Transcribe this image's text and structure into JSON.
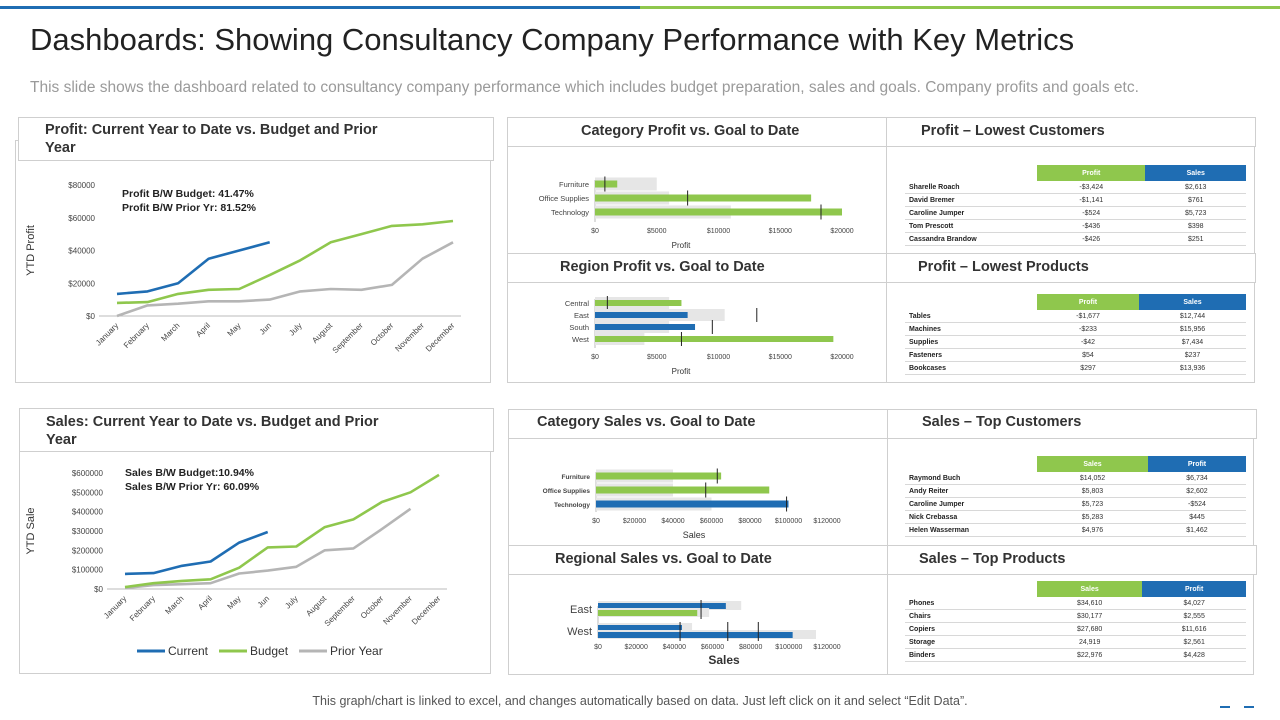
{
  "title": "Dashboards: Showing Consultancy Company Performance with Key Metrics",
  "subtitle": "This slide shows the dashboard related to consultancy company performance which includes budget preparation, sales and goals. Company profits and goals etc.",
  "footer": "This graph/chart is linked to excel, and changes automatically based on data. Just left click on it and select “Edit Data”.",
  "colors": {
    "current": "#1f6db3",
    "budget": "#8fc74d",
    "prior": "#b5b5b5",
    "goal_bg": "#e6e6e6"
  },
  "profit_panel": {
    "title_line1": "Profit: Current Year to Date vs. Budget and Prior",
    "title_line2": "Year",
    "note1": "Profit B/W Budget: 41.47%",
    "note2": "Profit B/W Prior Yr: 81.52%"
  },
  "sales_panel": {
    "title_line1": "Sales: Current Year to Date vs. Budget and Prior",
    "title_line2": "Year",
    "note1": "Sales B/W Budget:10.94%",
    "note2": "Sales B/W Prior Yr: 60.09%"
  },
  "legend": {
    "current": "Current",
    "budget": "Budget",
    "prior": "Prior Year"
  },
  "cells": {
    "cat_profit": "Category Profit vs. Goal to Date",
    "region_profit": "Region Profit vs. Goal to Date",
    "cat_sales": "Category Sales vs. Goal to Date",
    "regional_sales": "Regional Sales vs. Goal to Date",
    "low_customers": "Profit – Lowest Customers",
    "low_products": "Profit – Lowest Products",
    "top_customers": "Sales – Top Customers",
    "top_products": "Sales – Top Products"
  },
  "chart_data": [
    {
      "type": "line",
      "id": "profit_line",
      "ylabel": "YTD Profit",
      "ylim": [
        0,
        80000
      ],
      "yticks": [
        "$0",
        "$20000",
        "$40000",
        "$60000",
        "$80000"
      ],
      "ytick_values": [
        0,
        20000,
        40000,
        60000,
        80000
      ],
      "categories": [
        "January",
        "February",
        "March",
        "April",
        "May",
        "Jun",
        "July",
        "August",
        "September",
        "October",
        "November",
        "December"
      ],
      "series": [
        {
          "name": "Current",
          "values": [
            13500,
            15000,
            20000,
            35000,
            40000,
            45000,
            null,
            null,
            null,
            null,
            null,
            null
          ]
        },
        {
          "name": "Budget",
          "values": [
            8000,
            8500,
            13500,
            16000,
            16500,
            25000,
            34000,
            45000,
            50000,
            55000,
            56000,
            58000
          ]
        },
        {
          "name": "Prior Year",
          "values": [
            0,
            6500,
            7500,
            9000,
            9000,
            10000,
            15000,
            16500,
            16000,
            19000,
            35000,
            45000
          ]
        }
      ]
    },
    {
      "type": "line",
      "id": "sales_line",
      "ylabel": "YTD Sale",
      "ylim": [
        0,
        600000
      ],
      "yticks": [
        "$0",
        "$100000",
        "$200000",
        "$300000",
        "$400000",
        "$500000",
        "$600000"
      ],
      "ytick_values": [
        0,
        100000,
        200000,
        300000,
        400000,
        500000,
        600000
      ],
      "categories": [
        "January",
        "February",
        "March",
        "April",
        "May",
        "Jun",
        "July",
        "August",
        "September",
        "October",
        "November",
        "December"
      ],
      "series": [
        {
          "name": "Current",
          "values": [
            78000,
            82000,
            120000,
            142000,
            240000,
            295000,
            null,
            null,
            null,
            null,
            null,
            null
          ]
        },
        {
          "name": "Budget",
          "values": [
            10000,
            30000,
            42000,
            50000,
            110000,
            215000,
            220000,
            320000,
            360000,
            450000,
            500000,
            590000
          ]
        },
        {
          "name": "Prior Year",
          "values": [
            5000,
            20000,
            25000,
            30000,
            80000,
            95000,
            115000,
            200000,
            210000,
            310000,
            415000,
            null
          ]
        }
      ]
    },
    {
      "type": "bar",
      "id": "cat_profit",
      "orientation": "horizontal",
      "xlabel": "Profit",
      "categories": [
        "Furniture",
        "Office Supplies",
        "Technology"
      ],
      "values": [
        1800,
        17500,
        20000
      ],
      "goals": [
        800,
        7500,
        18300
      ],
      "background": [
        5000,
        6000,
        11000
      ],
      "bar_color": "#8fc74d",
      "xlim": [
        0,
        20000
      ],
      "xticks": [
        "$0",
        "$5000",
        "$10000",
        "$15000",
        "$20000"
      ],
      "xtick_values": [
        0,
        5000,
        10000,
        15000,
        20000
      ]
    },
    {
      "type": "bar",
      "id": "region_profit",
      "orientation": "horizontal",
      "xlabel": "Profit",
      "categories": [
        "Central",
        "East",
        "South",
        "West"
      ],
      "values": [
        7000,
        7500,
        8100,
        19300
      ],
      "colors": [
        "#8fc74d",
        "#1f6db3",
        "#1f6db3",
        "#8fc74d"
      ],
      "goals": [
        1000,
        13100,
        9500,
        7000
      ],
      "background": [
        6000,
        10500,
        6000,
        4000
      ],
      "xlim": [
        0,
        20000
      ],
      "xticks": [
        "$0",
        "$5000",
        "$10000",
        "$15000",
        "$20000"
      ],
      "xtick_values": [
        0,
        5000,
        10000,
        15000,
        20000
      ]
    },
    {
      "type": "bar",
      "id": "cat_sales",
      "orientation": "horizontal",
      "xlabel": "Sales",
      "categories": [
        "Furniture",
        "Office Supplies",
        "Technology"
      ],
      "values": [
        65000,
        90000,
        100000
      ],
      "colors": [
        "#8fc74d",
        "#8fc74d",
        "#1f6db3"
      ],
      "goals": [
        63000,
        57000,
        99000
      ],
      "background": [
        40000,
        40000,
        60000
      ],
      "xlim": [
        0,
        120000
      ],
      "xticks": [
        "$0",
        "$20000",
        "$40000",
        "$60000",
        "$80000",
        "$100000",
        "$120000"
      ],
      "xtick_values": [
        0,
        20000,
        40000,
        60000,
        80000,
        100000,
        120000
      ]
    },
    {
      "type": "bar",
      "id": "regional_sales",
      "orientation": "horizontal",
      "xlabel": "Sales",
      "categories": [
        "East",
        "West"
      ],
      "sub_values": [
        [
          67000,
          52000
        ],
        [
          44000,
          102000
        ]
      ],
      "sub_colors": [
        [
          "#1f6db3",
          "#8fc74d"
        ],
        [
          "#1f6db3",
          "#1f6db3"
        ]
      ],
      "goals": [
        [
          54000
        ],
        [
          43000,
          68000,
          84000
        ]
      ],
      "xlim": [
        0,
        120000
      ],
      "xticks": [
        "$0",
        "$20000",
        "$40000",
        "$60000",
        "$80000",
        "$100000",
        "$120000"
      ],
      "xtick_values": [
        0,
        20000,
        40000,
        60000,
        80000,
        100000,
        120000
      ]
    }
  ],
  "tables": {
    "low_customers": {
      "headers": [
        "Profit",
        "Sales"
      ],
      "rows": [
        [
          "Sharelle Roach",
          "-$3,424",
          "$2,613"
        ],
        [
          "David Bremer",
          "-$1,141",
          "$761"
        ],
        [
          "Caroline Jumper",
          "-$524",
          "$5,723"
        ],
        [
          "Tom Prescott",
          "-$436",
          "$398"
        ],
        [
          "Cassandra Brandow",
          "-$426",
          "$251"
        ]
      ]
    },
    "low_products": {
      "headers": [
        "Profit",
        "Sales"
      ],
      "rows": [
        [
          "Tables",
          "-$1,677",
          "$12,744"
        ],
        [
          "Machines",
          "-$233",
          "$15,956"
        ],
        [
          "Supplies",
          "-$42",
          "$7,434"
        ],
        [
          "Fasteners",
          "$54",
          "$237"
        ],
        [
          "Bookcases",
          "$297",
          "$13,936"
        ]
      ]
    },
    "top_customers": {
      "headers": [
        "Sales",
        "Profit"
      ],
      "rows": [
        [
          "Raymond Buch",
          "$14,052",
          "$6,734"
        ],
        [
          "Andy Reiter",
          "$5,803",
          "$2,602"
        ],
        [
          "Caroline Jumper",
          "$5,723",
          "-$524"
        ],
        [
          "Nick Crebassa",
          "$5,283",
          "$445"
        ],
        [
          "Helen Wasserman",
          "$4,976",
          "$1,462"
        ]
      ]
    },
    "top_products": {
      "headers": [
        "Sales",
        "Profit"
      ],
      "rows": [
        [
          "Phones",
          "$34,610",
          "$4,027"
        ],
        [
          "Chairs",
          "$30,177",
          "$2,555"
        ],
        [
          "Copiers",
          "$27,680",
          "$11,616"
        ],
        [
          "Storage",
          "24,919",
          "$2,561"
        ],
        [
          "Binders",
          "$22,976",
          "$4,428"
        ]
      ]
    }
  }
}
